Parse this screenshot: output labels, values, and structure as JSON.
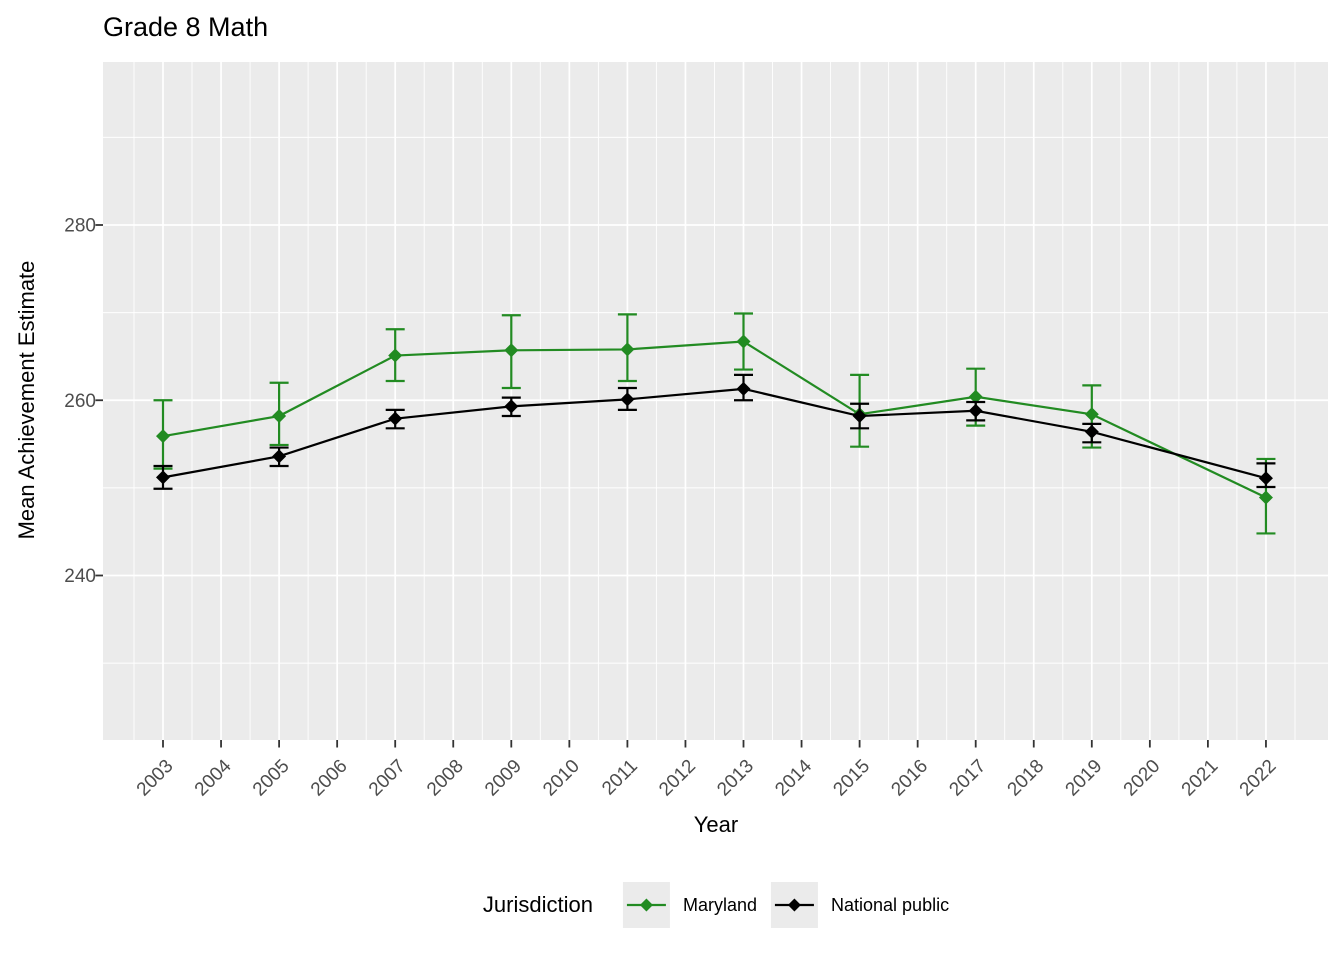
{
  "page": {
    "background_color": "#FFFFFF"
  },
  "chart_data": {
    "type": "line",
    "title": "Grade 8 Math",
    "xlabel": "Year",
    "ylabel": "Mean Achievement Estimate",
    "legend_title": "Jurisdiction",
    "legend_position": "bottom",
    "panel_background": "#EBEBEB",
    "gridline_color": "#FFFFFF",
    "tick_color": "#333333",
    "tick_label_color": "#4D4D4D",
    "grid": "major and minor white gridlines on gray panel",
    "x_ticks": [
      2003,
      2004,
      2005,
      2006,
      2007,
      2008,
      2009,
      2010,
      2011,
      2012,
      2013,
      2014,
      2015,
      2016,
      2017,
      2018,
      2019,
      2020,
      2021,
      2022
    ],
    "y_ticks": [
      240,
      260,
      280
    ],
    "y_ticks_minor": [
      230,
      250,
      270,
      290
    ],
    "xlim": [
      2002.0,
      2023.1
    ],
    "ylim": [
      221,
      298.5
    ],
    "x": [
      2003,
      2005,
      2007,
      2009,
      2011,
      2013,
      2015,
      2017,
      2019,
      2022
    ],
    "series": [
      {
        "name": "Maryland",
        "color": "#228B22",
        "values": [
          255.9,
          258.2,
          265.1,
          265.7,
          265.8,
          266.7,
          258.4,
          260.4,
          258.4,
          248.9
        ],
        "ci_low": [
          252.2,
          254.9,
          262.2,
          261.4,
          262.2,
          263.5,
          254.7,
          257.1,
          254.6,
          244.8
        ],
        "ci_high": [
          260.0,
          262.0,
          268.1,
          269.7,
          269.8,
          269.9,
          262.9,
          263.6,
          261.7,
          253.3
        ]
      },
      {
        "name": "National public",
        "color": "#000000",
        "values": [
          251.2,
          253.6,
          257.9,
          259.3,
          260.1,
          261.3,
          258.2,
          258.8,
          256.4,
          251.1
        ],
        "ci_low": [
          249.9,
          252.5,
          256.8,
          258.2,
          258.9,
          260.0,
          256.8,
          257.7,
          255.2,
          250.1
        ],
        "ci_high": [
          252.5,
          254.6,
          258.9,
          260.3,
          261.4,
          262.9,
          259.6,
          259.8,
          257.3,
          252.8
        ]
      }
    ]
  }
}
